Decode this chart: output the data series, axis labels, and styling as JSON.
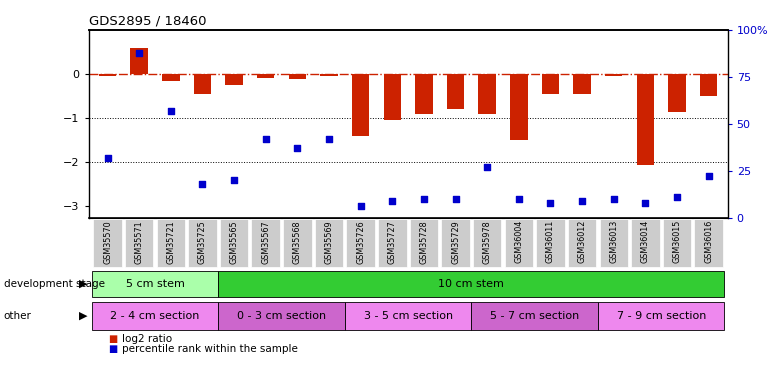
{
  "title": "GDS2895 / 18460",
  "samples": [
    "GSM35570",
    "GSM35571",
    "GSM35721",
    "GSM35725",
    "GSM35565",
    "GSM35567",
    "GSM35568",
    "GSM35569",
    "GSM35726",
    "GSM35727",
    "GSM35728",
    "GSM35729",
    "GSM35978",
    "GSM36004",
    "GSM36011",
    "GSM36012",
    "GSM36013",
    "GSM36014",
    "GSM36015",
    "GSM36016"
  ],
  "log2_ratio": [
    -0.05,
    0.6,
    -0.15,
    -0.45,
    -0.25,
    -0.08,
    -0.12,
    -0.05,
    -1.4,
    -1.05,
    -0.9,
    -0.8,
    -0.9,
    -1.5,
    -0.45,
    -0.45,
    -0.05,
    -2.05,
    -0.85,
    -0.5
  ],
  "percentile": [
    32,
    88,
    57,
    18,
    20,
    42,
    37,
    42,
    6,
    9,
    10,
    10,
    27,
    10,
    8,
    9,
    10,
    8,
    11,
    22
  ],
  "bar_color": "#cc2200",
  "dot_color": "#0000cc",
  "ref_line_color": "#cc2200",
  "grid_line_color": "#000000",
  "ylim_left": [
    -3.25,
    1.0
  ],
  "ylim_right": [
    0,
    100
  ],
  "yticks_left": [
    -3,
    -2,
    -1,
    0
  ],
  "yticks_right": [
    0,
    25,
    50,
    75,
    100
  ],
  "background_color": "#ffffff",
  "development_stage_groups": [
    {
      "label": "5 cm stem",
      "start": 0,
      "end": 4,
      "color": "#aaffaa"
    },
    {
      "label": "10 cm stem",
      "start": 4,
      "end": 20,
      "color": "#33cc33"
    }
  ],
  "other_groups": [
    {
      "label": "2 - 4 cm section",
      "start": 0,
      "end": 4,
      "color": "#ee88ee"
    },
    {
      "label": "0 - 3 cm section",
      "start": 4,
      "end": 8,
      "color": "#cc66cc"
    },
    {
      "label": "3 - 5 cm section",
      "start": 8,
      "end": 12,
      "color": "#ee88ee"
    },
    {
      "label": "5 - 7 cm section",
      "start": 12,
      "end": 16,
      "color": "#cc66cc"
    },
    {
      "label": "7 - 9 cm section",
      "start": 16,
      "end": 20,
      "color": "#ee88ee"
    }
  ],
  "dev_stage_label": "development stage",
  "other_label": "other",
  "legend_items": [
    "log2 ratio",
    "percentile rank within the sample"
  ],
  "legend_colors": [
    "#cc2200",
    "#0000cc"
  ],
  "xtick_bg": "#cccccc"
}
